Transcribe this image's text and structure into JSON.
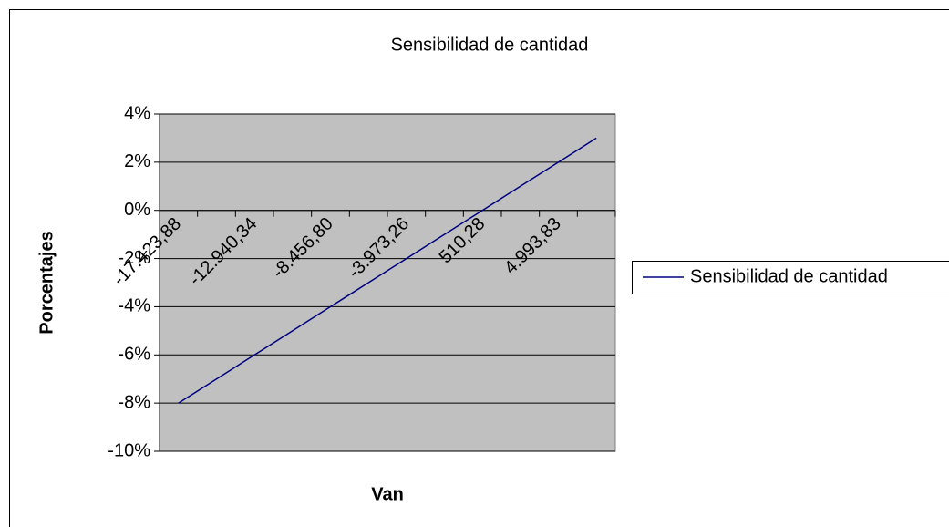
{
  "chart_data": {
    "type": "line",
    "title": "Sensibilidad de cantidad",
    "x_label": "Van",
    "y_label": "Porcentajes",
    "categories": [
      "-17.423,88",
      null,
      "-12.940,34",
      null,
      "-8.456,80",
      null,
      "-3.973,26",
      null,
      "510,28",
      null,
      "4.993,83",
      null
    ],
    "series": [
      {
        "name": "Sensibilidad de cantidad",
        "color": "#000080",
        "values": [
          -8,
          -7,
          -6,
          -5,
          -4,
          -3,
          -2,
          -1,
          0,
          1,
          2,
          3
        ]
      }
    ],
    "ylim": [
      -10,
      4
    ],
    "yticks": [
      {
        "value": -10,
        "label": "-10%"
      },
      {
        "value": -8,
        "label": "-8%"
      },
      {
        "value": -6,
        "label": "-6%"
      },
      {
        "value": -4,
        "label": "-4%"
      },
      {
        "value": -2,
        "label": "-2%"
      },
      {
        "value": 0,
        "label": "0%"
      },
      {
        "value": 2,
        "label": "2%"
      },
      {
        "value": 4,
        "label": "4%"
      }
    ],
    "grid": true,
    "plot_background": "#c0c0c0",
    "legend": "right"
  }
}
